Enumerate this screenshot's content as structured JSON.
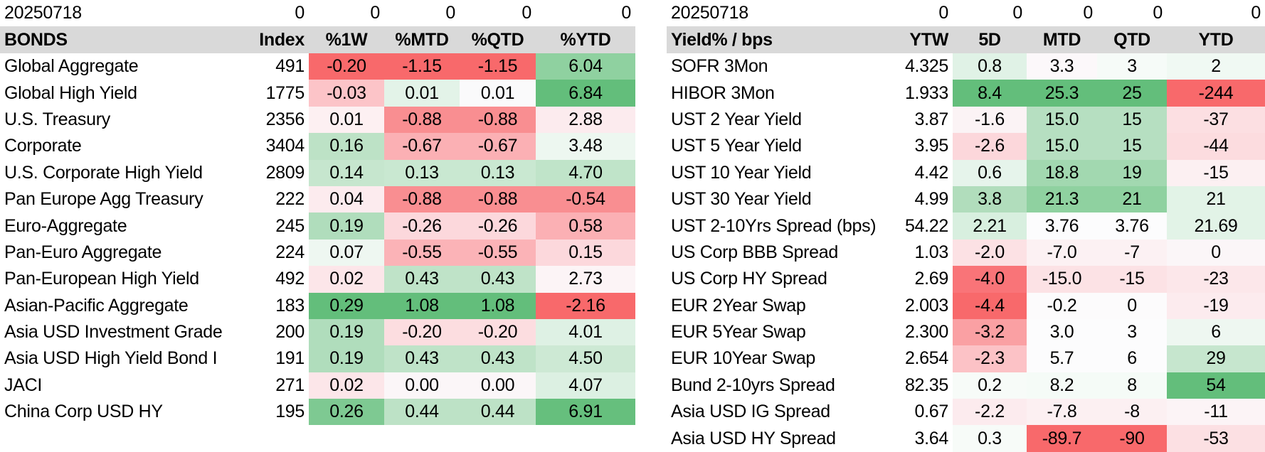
{
  "bonds": {
    "date_row": [
      "20250718",
      "0",
      "0",
      "0",
      "0",
      "0"
    ],
    "headers": [
      "BONDS",
      "Index",
      "%1W",
      "%MTD",
      "%QTD",
      "%YTD"
    ],
    "rows": [
      {
        "name": "Global Aggregate",
        "index": "491",
        "w1": "-0.20",
        "mtd": "-1.15",
        "qtd": "-1.15",
        "ytd": "6.04"
      },
      {
        "name": "Global High Yield",
        "index": "1775",
        "w1": "-0.03",
        "mtd": "0.01",
        "qtd": "0.01",
        "ytd": "6.84"
      },
      {
        "name": "U.S. Treasury",
        "index": "2356",
        "w1": "0.01",
        "mtd": "-0.88",
        "qtd": "-0.88",
        "ytd": "2.88"
      },
      {
        "name": "Corporate",
        "index": "3404",
        "w1": "0.16",
        "mtd": "-0.67",
        "qtd": "-0.67",
        "ytd": "3.48"
      },
      {
        "name": "U.S. Corporate High Yield",
        "index": "2809",
        "w1": "0.14",
        "mtd": "0.13",
        "qtd": "0.13",
        "ytd": "4.70"
      },
      {
        "name": "Pan Europe Agg Treasury",
        "index": "222",
        "w1": "0.04",
        "mtd": "-0.88",
        "qtd": "-0.88",
        "ytd": "-0.54"
      },
      {
        "name": "Euro-Aggregate",
        "index": "245",
        "w1": "0.19",
        "mtd": "-0.26",
        "qtd": "-0.26",
        "ytd": "0.58"
      },
      {
        "name": "Pan-Euro Aggregate",
        "index": "224",
        "w1": "0.07",
        "mtd": "-0.55",
        "qtd": "-0.55",
        "ytd": "0.15"
      },
      {
        "name": "Pan-European High Yield",
        "index": "492",
        "w1": "0.02",
        "mtd": "0.43",
        "qtd": "0.43",
        "ytd": "2.73"
      },
      {
        "name": "Asian-Pacific Aggregate",
        "index": "183",
        "w1": "0.29",
        "mtd": "1.08",
        "qtd": "1.08",
        "ytd": "-2.16"
      },
      {
        "name": "Asia USD Investment Grade",
        "index": "200",
        "w1": "0.19",
        "mtd": "-0.20",
        "qtd": "-0.20",
        "ytd": "4.01"
      },
      {
        "name": "Asia USD High Yield Bond I",
        "index": "191",
        "w1": "0.19",
        "mtd": "0.43",
        "qtd": "0.43",
        "ytd": "4.50"
      },
      {
        "name": "JACI",
        "index": "271",
        "w1": "0.02",
        "mtd": "0.00",
        "qtd": "0.00",
        "ytd": "4.07"
      },
      {
        "name": "China Corp USD HY",
        "index": "195",
        "w1": "0.26",
        "mtd": "0.44",
        "qtd": "0.44",
        "ytd": "6.91"
      }
    ],
    "colors": [
      [
        "#f8696b",
        "#f8696b",
        "#f8696b",
        "#8fd1a0"
      ],
      [
        "#fcc4c8",
        "#e3f3e8",
        "#fafafb",
        "#63be7b"
      ],
      [
        "#fdf0f2",
        "#f98e91",
        "#f98e91",
        "#fcebee"
      ],
      [
        "#bde2c6",
        "#fbb0b4",
        "#fbb0b4",
        "#edf7f0"
      ],
      [
        "#c6e6ce",
        "#c9e8d1",
        "#c9e8d1",
        "#c0e4c9"
      ],
      [
        "#fcebee",
        "#f98e91",
        "#f98e91",
        "#f98e91"
      ],
      [
        "#b0ddbc",
        "#fcd8dc",
        "#fcd8dc",
        "#fbb0b4"
      ],
      [
        "#eef7f1",
        "#fbb3b7",
        "#fbb3b7",
        "#fcd8dc"
      ],
      [
        "#fce6e9",
        "#bfe3c8",
        "#bfe3c8",
        "#fcf4f6"
      ],
      [
        "#63be7b",
        "#63be7b",
        "#63be7b",
        "#f8696b"
      ],
      [
        "#b0ddbc",
        "#fcdde0",
        "#fcdde0",
        "#def1e4"
      ],
      [
        "#b0ddbc",
        "#bfe3c8",
        "#bfe3c8",
        "#cde9d4"
      ],
      [
        "#fce6e9",
        "#fbf6f8",
        "#fbf6f8",
        "#dcf0e2"
      ],
      [
        "#7ec992",
        "#bde2c6",
        "#bde2c6",
        "#66bf7d"
      ]
    ]
  },
  "yields": {
    "date_row": [
      "20250718",
      "0",
      "0",
      "0",
      "0",
      "0"
    ],
    "headers": [
      "Yield% / bps",
      "YTW",
      "5D",
      "MTD",
      "QTD",
      "YTD"
    ],
    "rows": [
      {
        "name": "SOFR 3Mon",
        "ytw": "4.325",
        "d5": "0.8",
        "mtd": "3.3",
        "qtd": "3",
        "ytd": "2"
      },
      {
        "name": "HIBOR 3Mon",
        "ytw": "1.933",
        "d5": "8.4",
        "mtd": "25.3",
        "qtd": "25",
        "ytd": "-244"
      },
      {
        "name": "UST 2 Year Yield",
        "ytw": "3.87",
        "d5": "-1.6",
        "mtd": "15.0",
        "qtd": "15",
        "ytd": "-37"
      },
      {
        "name": "UST 5 Year Yield",
        "ytw": "3.95",
        "d5": "-2.6",
        "mtd": "15.0",
        "qtd": "15",
        "ytd": "-44"
      },
      {
        "name": "UST 10 Year Yield",
        "ytw": "4.42",
        "d5": "0.6",
        "mtd": "18.8",
        "qtd": "19",
        "ytd": "-15"
      },
      {
        "name": "UST 30 Year Yield",
        "ytw": "4.99",
        "d5": "3.8",
        "mtd": "21.3",
        "qtd": "21",
        "ytd": "21"
      },
      {
        "name": "UST 2-10Yrs Spread (bps)",
        "ytw": "54.22",
        "d5": "2.21",
        "mtd": "3.76",
        "qtd": "3.76",
        "ytd": "21.69"
      },
      {
        "name": "US Corp BBB Spread",
        "ytw": "1.03",
        "d5": "-2.0",
        "mtd": "-7.0",
        "qtd": "-7",
        "ytd": "0"
      },
      {
        "name": "US Corp HY Spread",
        "ytw": "2.69",
        "d5": "-4.0",
        "mtd": "-15.0",
        "qtd": "-15",
        "ytd": "-23"
      },
      {
        "name": "EUR 2Year Swap",
        "ytw": "2.003",
        "d5": "-4.4",
        "mtd": "-0.2",
        "qtd": "0",
        "ytd": "-19"
      },
      {
        "name": "EUR 5Year Swap",
        "ytw": "2.300",
        "d5": "-3.2",
        "mtd": "3.0",
        "qtd": "3",
        "ytd": "6"
      },
      {
        "name": "EUR 10Year Swap",
        "ytw": "2.654",
        "d5": "-2.3",
        "mtd": "5.7",
        "qtd": "6",
        "ytd": "29"
      },
      {
        "name": "Bund 2-10yrs Spread",
        "ytw": "82.35",
        "d5": "0.2",
        "mtd": "8.2",
        "qtd": "8",
        "ytd": "54"
      },
      {
        "name": "Asia USD IG Spread",
        "ytw": "0.67",
        "d5": "-2.2",
        "mtd": "-7.8",
        "qtd": "-8",
        "ytd": "-11"
      },
      {
        "name": "Asia USD HY Spread",
        "ytw": "3.64",
        "d5": "0.3",
        "mtd": "-89.7",
        "qtd": "-90",
        "ytd": "-53"
      }
    ],
    "colors": [
      [
        "#e0f2e6",
        "#fcf8fa",
        "#f6fbf8",
        "#f0f9f3"
      ],
      [
        "#63be7b",
        "#63be7b",
        "#63be7b",
        "#f8696b"
      ],
      [
        "#fbf3f5",
        "#b6dfc1",
        "#b6dfc1",
        "#fcdfe2"
      ],
      [
        "#fcd7db",
        "#b6dfc1",
        "#b6dfc1",
        "#fcdcdf"
      ],
      [
        "#e6f4eb",
        "#a2d8b0",
        "#a2d8b0",
        "#fcf0f2"
      ],
      [
        "#b1ddbc",
        "#8fd1a0",
        "#8fd1a0",
        "#e2f3e7"
      ],
      [
        "#d8efdf",
        "#fcfcfd",
        "#fcfcfd",
        "#e2f3e7"
      ],
      [
        "#fce1e4",
        "#fcf1f3",
        "#fcf1f3",
        "#fbf6f8"
      ],
      [
        "#f97478",
        "#fce2e5",
        "#fce2e5",
        "#fce7ea"
      ],
      [
        "#f8696b",
        "#fcfbfc",
        "#fcfbfc",
        "#fcebee"
      ],
      [
        "#faa0a3",
        "#fcfcfd",
        "#fcfcfd",
        "#eef7f1"
      ],
      [
        "#fcc2c6",
        "#fcfcfd",
        "#fcfcfd",
        "#c6e6ce"
      ],
      [
        "#f7fbf8",
        "#f5fbf7",
        "#f5fbf7",
        "#63be7b"
      ],
      [
        "#fcebee",
        "#fcf0f2",
        "#fcf0f2",
        "#fcf4f6"
      ],
      [
        "#f7fbf8",
        "#f8696b",
        "#f8696b",
        "#fce0e3"
      ]
    ]
  }
}
